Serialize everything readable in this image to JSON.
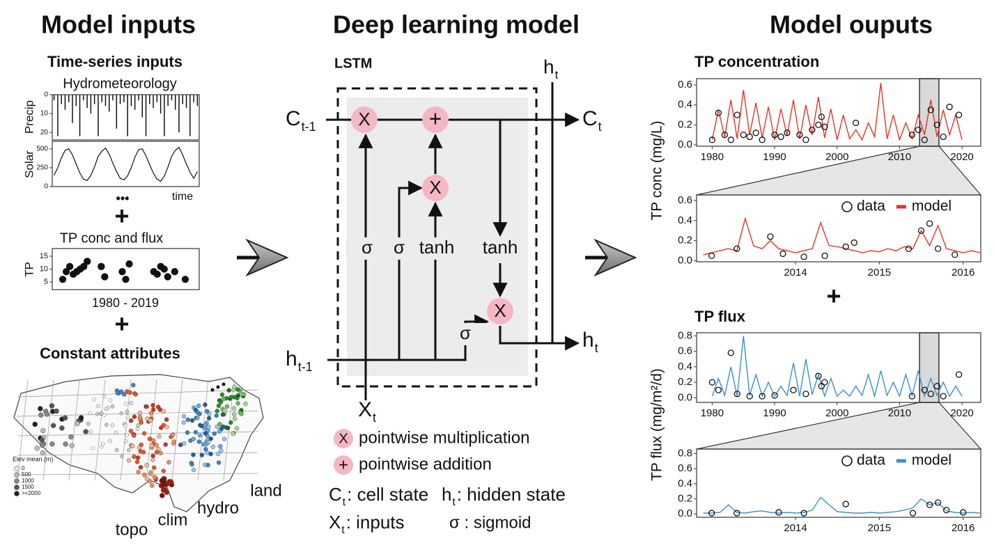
{
  "titles": {
    "inputs": "Model inputs",
    "model": "Deep learning model",
    "outputs": "Model ouputs"
  },
  "inputs": {
    "time_series": "Time-series inputs",
    "hydromet": "Hydrometeorology",
    "precip": {
      "ylabel": "Precip",
      "invert": true,
      "ylim": [
        0,
        24
      ],
      "yticks": [
        0,
        10,
        20
      ],
      "series": [
        {
          "style": "bars",
          "color": "#111111",
          "values": [
            3,
            22,
            5,
            8,
            4,
            15,
            6,
            22,
            3,
            7,
            10,
            5,
            22,
            4,
            6,
            9,
            3,
            18,
            5,
            4,
            22,
            6,
            8,
            3,
            12,
            22,
            5,
            7,
            4,
            10,
            22,
            6,
            3,
            8,
            20,
            5,
            7,
            22,
            4,
            6
          ]
        }
      ]
    },
    "solar": {
      "ylabel": "Solar",
      "ylim": [
        0,
        600
      ],
      "yticks": [
        0,
        250,
        500
      ],
      "series": [
        {
          "style": "line",
          "color": "#111111",
          "values": [
            150,
            250,
            380,
            480,
            500,
            420,
            300,
            180,
            100,
            80,
            150,
            260,
            400,
            470,
            510,
            430,
            310,
            200,
            110,
            90,
            140,
            250,
            390,
            490,
            500,
            410,
            290,
            180,
            100,
            70,
            140,
            260,
            400,
            480,
            520,
            420,
            300,
            190,
            110,
            200
          ]
        }
      ]
    },
    "more": "•••",
    "time_label": "time",
    "plus": "+",
    "tp_title": "TP conc and flux",
    "tp": {
      "ylabel": "TP",
      "xlim": [
        1978,
        2020
      ],
      "ylim": [
        2,
        18
      ],
      "yticks": [
        5,
        10,
        15
      ],
      "series": [
        {
          "style": "dots",
          "color": "#111111",
          "x": [
            1981,
            1982,
            1983,
            1984,
            1985,
            1986,
            1987,
            1988,
            1992,
            1993,
            1998,
            1999,
            2000,
            2007,
            2008,
            2009,
            2010,
            2011,
            2013,
            2016
          ],
          "values": [
            6,
            9,
            11,
            8,
            9,
            10,
            11,
            13,
            11,
            7,
            9,
            6,
            12,
            9,
            8,
            11,
            10,
            7,
            9,
            6
          ]
        }
      ]
    },
    "tp_xlabel": "1980 - 2019",
    "constant": "Constant attributes",
    "map": {
      "legend_title": "Elev mean (m)",
      "legend": [
        "0",
        "500",
        "1000",
        "1500",
        ">=2000"
      ],
      "labels": [
        "topo",
        "clim",
        "hydro",
        "land"
      ]
    }
  },
  "lstm": {
    "title": "LSTM",
    "c_prev": {
      "main": "C",
      "sub": "t-1"
    },
    "c_next": {
      "main": "C",
      "sub": "t"
    },
    "h_prev": {
      "main": "h",
      "sub": "t-1"
    },
    "h_next": {
      "main": "h",
      "sub": "t"
    },
    "h_top": {
      "main": "h",
      "sub": "t"
    },
    "x_in": {
      "main": "X",
      "sub": "t"
    },
    "mult": "X",
    "add": "+",
    "gates": [
      "σ",
      "σ",
      "tanh",
      "tanh",
      "σ"
    ],
    "legend": {
      "mult": "pointwise multiplication",
      "add": "pointwise addition",
      "cell": {
        "main": "C",
        "sub": "t",
        "text": ": cell state"
      },
      "hidden": {
        "main": "h",
        "sub": "t",
        "text": ": hidden state"
      },
      "inputs": {
        "main": "X",
        "sub": "t",
        "text": ": inputs"
      },
      "sigmoid": "σ : sigmoid"
    }
  },
  "outputs": {
    "conc_title": "TP concentration",
    "conc_ylabel": "TP conc (mg/L)",
    "flux_title": "TP flux",
    "flux_ylabel": "TP flux (mg/m²/d)",
    "plus": "+",
    "conc": {
      "xlim": [
        1977.5,
        2023
      ],
      "ylim": [
        -0.014,
        0.663
      ],
      "xticks": [
        1980,
        1990,
        2000,
        2010,
        2020
      ],
      "yticks": [
        {
          "value": 0,
          "label": "0.0"
        },
        0.2,
        0.4,
        0.6
      ],
      "zoom": [
        2013.2,
        2016.3
      ],
      "series": [
        {
          "style": "line",
          "color": "#e63323",
          "x": [
            1980,
            1981,
            1982,
            1983,
            1984,
            1985,
            1986,
            1987,
            1988,
            1989,
            1990,
            1991,
            1992,
            1993,
            1994,
            1995,
            1996,
            1997,
            1998,
            1999,
            2000,
            2001,
            2002,
            2003,
            2004,
            2005,
            2006,
            2007,
            2008,
            2009,
            2010,
            2011,
            2012,
            2013,
            2014,
            2015,
            2016,
            2017,
            2018,
            2019,
            2020
          ],
          "values": [
            0.05,
            0.35,
            0.08,
            0.45,
            0.06,
            0.55,
            0.1,
            0.42,
            0.07,
            0.38,
            0.05,
            0.36,
            0.09,
            0.45,
            0.06,
            0.4,
            0.1,
            0.48,
            0.07,
            0.36,
            0.05,
            0.3,
            0.06,
            0.15,
            0.05,
            0.22,
            0.08,
            0.62,
            0.06,
            0.3,
            0.05,
            0.22,
            0.06,
            0.3,
            0.1,
            0.45,
            0.08,
            0.35,
            0.1,
            0.3,
            0.05
          ]
        },
        {
          "style": "points",
          "color": "#111111",
          "x": [
            1980,
            1981,
            1982,
            1983,
            1984,
            1985,
            1986,
            1987,
            1988,
            1990,
            1991,
            1992,
            1994,
            1995,
            1996,
            1997,
            1997.5,
            1998,
            2003,
            2012,
            2013,
            2014,
            2015,
            2016,
            2017,
            2018,
            2019.5
          ],
          "values": [
            0.05,
            0.32,
            0.1,
            0.05,
            0.3,
            0.1,
            0.08,
            0.12,
            0.05,
            0.1,
            0.08,
            0.12,
            0.1,
            0.05,
            0.15,
            0.2,
            0.28,
            0.18,
            0.22,
            0.1,
            0.15,
            0.05,
            0.35,
            0.2,
            0.08,
            0.38,
            0.3
          ]
        }
      ]
    },
    "conc_zoom": {
      "xlim": [
        2012.82,
        2016.21
      ],
      "ylim": [
        -0.01,
        0.655
      ],
      "xticks": [
        2014,
        2015,
        2016
      ],
      "yticks": [
        {
          "value": 0,
          "label": "0.0"
        },
        0.2,
        0.4,
        0.6
      ],
      "legend": true,
      "series": [
        {
          "name": "model",
          "style": "line",
          "color": "#e63323",
          "x": [
            2012.9,
            2013.0,
            2013.1,
            2013.2,
            2013.3,
            2013.4,
            2013.5,
            2013.6,
            2013.7,
            2013.8,
            2013.9,
            2014.0,
            2014.1,
            2014.2,
            2014.3,
            2014.4,
            2014.5,
            2014.6,
            2014.7,
            2014.8,
            2014.9,
            2015.0,
            2015.1,
            2015.2,
            2015.3,
            2015.4,
            2015.5,
            2015.6,
            2015.7,
            2015.8,
            2015.9,
            2016.0,
            2016.1,
            2016.2
          ],
          "values": [
            0.06,
            0.08,
            0.1,
            0.12,
            0.1,
            0.42,
            0.15,
            0.12,
            0.2,
            0.12,
            0.1,
            0.08,
            0.1,
            0.12,
            0.38,
            0.15,
            0.14,
            0.12,
            0.1,
            0.08,
            0.1,
            0.09,
            0.12,
            0.1,
            0.14,
            0.12,
            0.3,
            0.15,
            0.35,
            0.12,
            0.1,
            0.08,
            0.1,
            0.08
          ]
        },
        {
          "name": "data",
          "style": "points",
          "color": "#111111",
          "x": [
            2013.0,
            2013.3,
            2013.7,
            2013.85,
            2014.1,
            2014.35,
            2014.6,
            2014.7,
            2015.35,
            2015.5,
            2015.6,
            2015.7,
            2015.9
          ],
          "values": [
            0.05,
            0.12,
            0.24,
            0.07,
            0.04,
            0.05,
            0.14,
            0.18,
            0.12,
            0.3,
            0.37,
            0.12,
            0.06
          ]
        }
      ]
    },
    "flux": {
      "xlim": [
        1977.5,
        2023
      ],
      "ylim": [
        -0.06,
        0.84
      ],
      "xticks": [
        1980,
        1990,
        2000,
        2010,
        2020
      ],
      "yticks": [
        {
          "value": 0,
          "label": "0.0"
        },
        0.2,
        0.4,
        0.6,
        0.8
      ],
      "zoom": [
        2013.2,
        2016.3
      ],
      "series": [
        {
          "style": "line",
          "color": "#3d8fcc",
          "x": [
            1980,
            1981,
            1982,
            1983,
            1984,
            1985,
            1986,
            1987,
            1988,
            1989,
            1990,
            1991,
            1992,
            1993,
            1994,
            1995,
            1996,
            1997,
            1998,
            1999,
            2000,
            2001,
            2002,
            2003,
            2004,
            2005,
            2006,
            2007,
            2008,
            2009,
            2010,
            2011,
            2012,
            2013,
            2014,
            2015,
            2016,
            2017,
            2018,
            2019,
            2020
          ],
          "values": [
            0.02,
            0.25,
            0.03,
            0.4,
            0.02,
            0.8,
            0.03,
            0.3,
            0.02,
            0.2,
            0.02,
            0.15,
            0.03,
            0.45,
            0.02,
            0.5,
            0.04,
            0.3,
            0.02,
            0.25,
            0.02,
            0.1,
            0.02,
            0.15,
            0.03,
            0.3,
            0.02,
            0.35,
            0.03,
            0.2,
            0.02,
            0.3,
            0.03,
            0.35,
            0.02,
            0.25,
            0.03,
            0.2,
            0.02,
            0.15,
            0.02
          ]
        },
        {
          "style": "points",
          "color": "#111111",
          "x": [
            1980,
            1981,
            1983,
            1984,
            1986,
            1988,
            1990,
            1993,
            1995,
            1997,
            1997.5,
            1998,
            2012,
            2014,
            2015,
            2016,
            2017,
            2019.5
          ],
          "values": [
            0.2,
            0.1,
            0.58,
            0.05,
            0.02,
            0.02,
            0.03,
            0.1,
            0.05,
            0.28,
            0.15,
            0.2,
            0.02,
            0.1,
            0.05,
            0.15,
            0.02,
            0.3
          ]
        }
      ]
    },
    "flux_zoom": {
      "xlim": [
        2012.82,
        2016.21
      ],
      "ylim": [
        -0.045,
        0.86
      ],
      "xticks": [
        2014,
        2015,
        2016
      ],
      "yticks": [
        {
          "value": 0,
          "label": "0.0"
        },
        0.2,
        0.4,
        0.6,
        0.8
      ],
      "legend": true,
      "series": [
        {
          "name": "model",
          "style": "line",
          "color": "#3d8fcc",
          "x": [
            2012.9,
            2013.0,
            2013.1,
            2013.2,
            2013.3,
            2013.4,
            2013.5,
            2013.6,
            2013.7,
            2013.8,
            2013.9,
            2014.0,
            2014.1,
            2014.2,
            2014.3,
            2014.4,
            2014.5,
            2014.6,
            2014.7,
            2014.8,
            2014.9,
            2015.0,
            2015.1,
            2015.2,
            2015.3,
            2015.4,
            2015.5,
            2015.6,
            2015.7,
            2015.8,
            2015.9,
            2016.0,
            2016.1,
            2016.2
          ],
          "values": [
            0.01,
            0.01,
            0.02,
            0.12,
            0.02,
            0.01,
            0.03,
            0.04,
            0.02,
            0.01,
            0.02,
            0.01,
            0.02,
            0.05,
            0.22,
            0.12,
            0.03,
            0.02,
            0.01,
            0.01,
            0.02,
            0.01,
            0.02,
            0.03,
            0.05,
            0.08,
            0.2,
            0.12,
            0.15,
            0.04,
            0.02,
            0.01,
            0.02,
            0.01
          ]
        },
        {
          "name": "data",
          "style": "points",
          "color": "#111111",
          "x": [
            2013.0,
            2013.3,
            2013.8,
            2014.1,
            2014.6,
            2015.4,
            2015.6,
            2015.7,
            2015.8,
            2016.0
          ],
          "values": [
            0.01,
            0.01,
            0.02,
            0.01,
            0.13,
            0.01,
            0.12,
            0.15,
            0.05,
            0.02
          ]
        }
      ]
    }
  }
}
